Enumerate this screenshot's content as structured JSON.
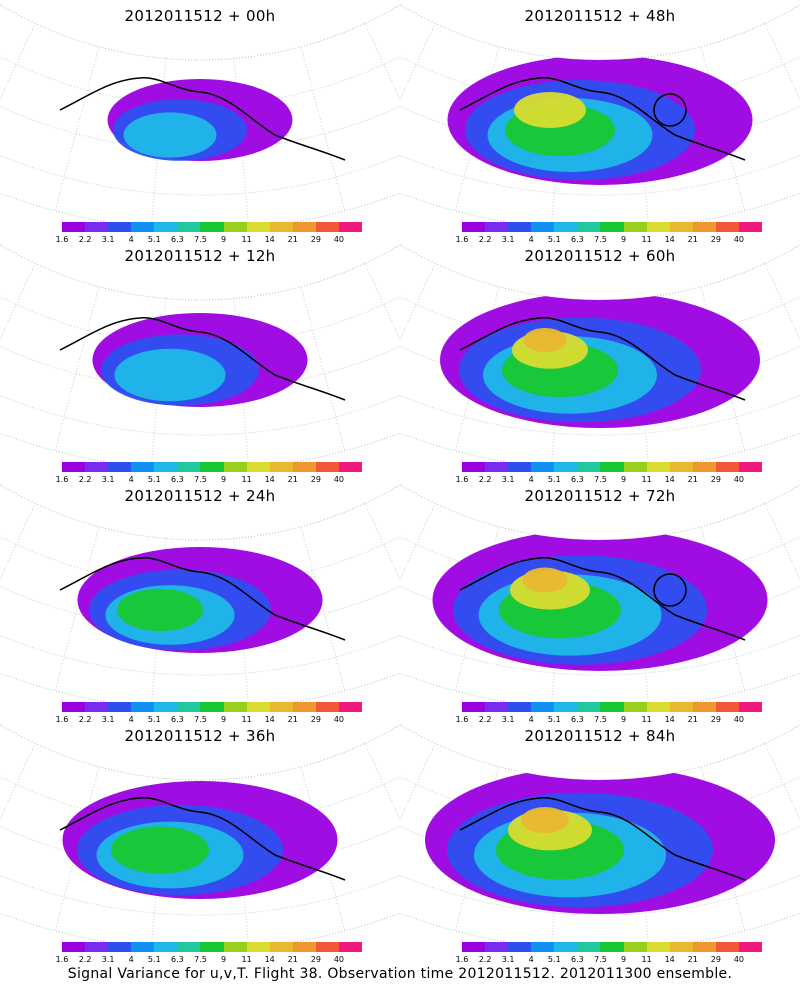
{
  "caption": "Signal Variance for u,v,T. Flight 38. Observation time 2012011512. 2012011300 ensemble.",
  "colorbar": {
    "ticks": [
      "1.6",
      "2.2",
      "3.1",
      "4",
      "5.1",
      "6.3",
      "7.5",
      "9",
      "11",
      "14",
      "21",
      "29",
      "40"
    ],
    "colors": [
      "#9a00e0",
      "#7a2cf0",
      "#2c50f0",
      "#1090f0",
      "#20b8e8",
      "#20c8a0",
      "#18c830",
      "#98d020",
      "#d8dc30",
      "#e8b830",
      "#f09830",
      "#f05838",
      "#f01878"
    ]
  },
  "chart_data": [
    {
      "type": "heatmap",
      "title": "2012011512 + 00h",
      "lead_hours": 0,
      "intensity": 0.35,
      "circle": false
    },
    {
      "type": "heatmap",
      "title": "2012011512 + 48h",
      "lead_hours": 48,
      "intensity": 0.75,
      "circle": true
    },
    {
      "type": "heatmap",
      "title": "2012011512 + 12h",
      "lead_hours": 12,
      "intensity": 0.45,
      "circle": false
    },
    {
      "type": "heatmap",
      "title": "2012011512 + 60h",
      "lead_hours": 60,
      "intensity": 0.8,
      "circle": false
    },
    {
      "type": "heatmap",
      "title": "2012011512 + 24h",
      "lead_hours": 24,
      "intensity": 0.55,
      "circle": false
    },
    {
      "type": "heatmap",
      "title": "2012011512 + 72h",
      "lead_hours": 72,
      "intensity": 0.85,
      "circle": true
    },
    {
      "type": "heatmap",
      "title": "2012011512 + 36h",
      "lead_hours": 36,
      "intensity": 0.65,
      "circle": false
    },
    {
      "type": "heatmap",
      "title": "2012011512 + 84h",
      "lead_hours": 84,
      "intensity": 0.9,
      "circle": false
    }
  ]
}
